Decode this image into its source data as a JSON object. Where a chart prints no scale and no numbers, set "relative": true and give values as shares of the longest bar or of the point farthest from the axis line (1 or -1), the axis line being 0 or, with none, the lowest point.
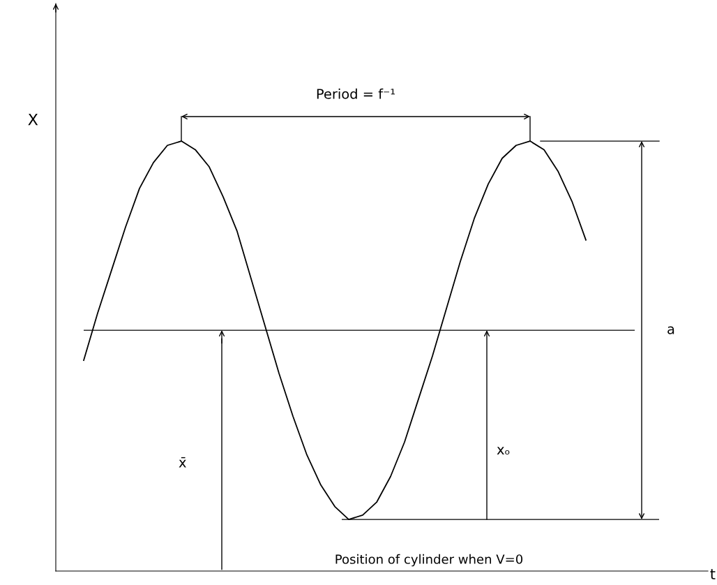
{
  "chart_data": {
    "type": "line",
    "xlabel": "t",
    "ylabel": "X",
    "relative": true,
    "marker": "none",
    "line_style": "solid",
    "categories": [
      null,
      null,
      null,
      null,
      null,
      null,
      null,
      null,
      null,
      null,
      null,
      null,
      null,
      null,
      null,
      null,
      null,
      null,
      null,
      null,
      null,
      null,
      null,
      null,
      null,
      null,
      null,
      null,
      null,
      null,
      null,
      null,
      null,
      null,
      null,
      null,
      null,
      null,
      null,
      null,
      null,
      null,
      null,
      null,
      null,
      null,
      null
    ],
    "series": [
      {
        "color": "#000000",
        "values": [
          null,
          null,
          0.49,
          0.6,
          0.7,
          0.8,
          0.89,
          0.95,
          0.99,
          1.0,
          0.98,
          0.94,
          0.87,
          0.79,
          0.68,
          0.57,
          0.46,
          0.36,
          0.27,
          0.2,
          0.15,
          0.12,
          0.13,
          0.16,
          0.22,
          0.3,
          0.4,
          0.5,
          0.61,
          0.72,
          0.82,
          0.9,
          0.96,
          0.99,
          1.0,
          0.98,
          0.93,
          0.86,
          0.77,
          null,
          null,
          null,
          null,
          null,
          null,
          null,
          null
        ]
      }
    ],
    "ref_lines": [
      {
        "axis": "y",
        "value": 0.56,
        "color": "#000000",
        "line_style": "solid"
      },
      {
        "axis": "y",
        "value": 0.12,
        "color": "#000000",
        "line_style": "solid"
      }
    ],
    "annotations": [
      "Period = f⁻¹",
      "x̄",
      "xₒ",
      "a",
      "Position of cylinder when V=0"
    ]
  }
}
